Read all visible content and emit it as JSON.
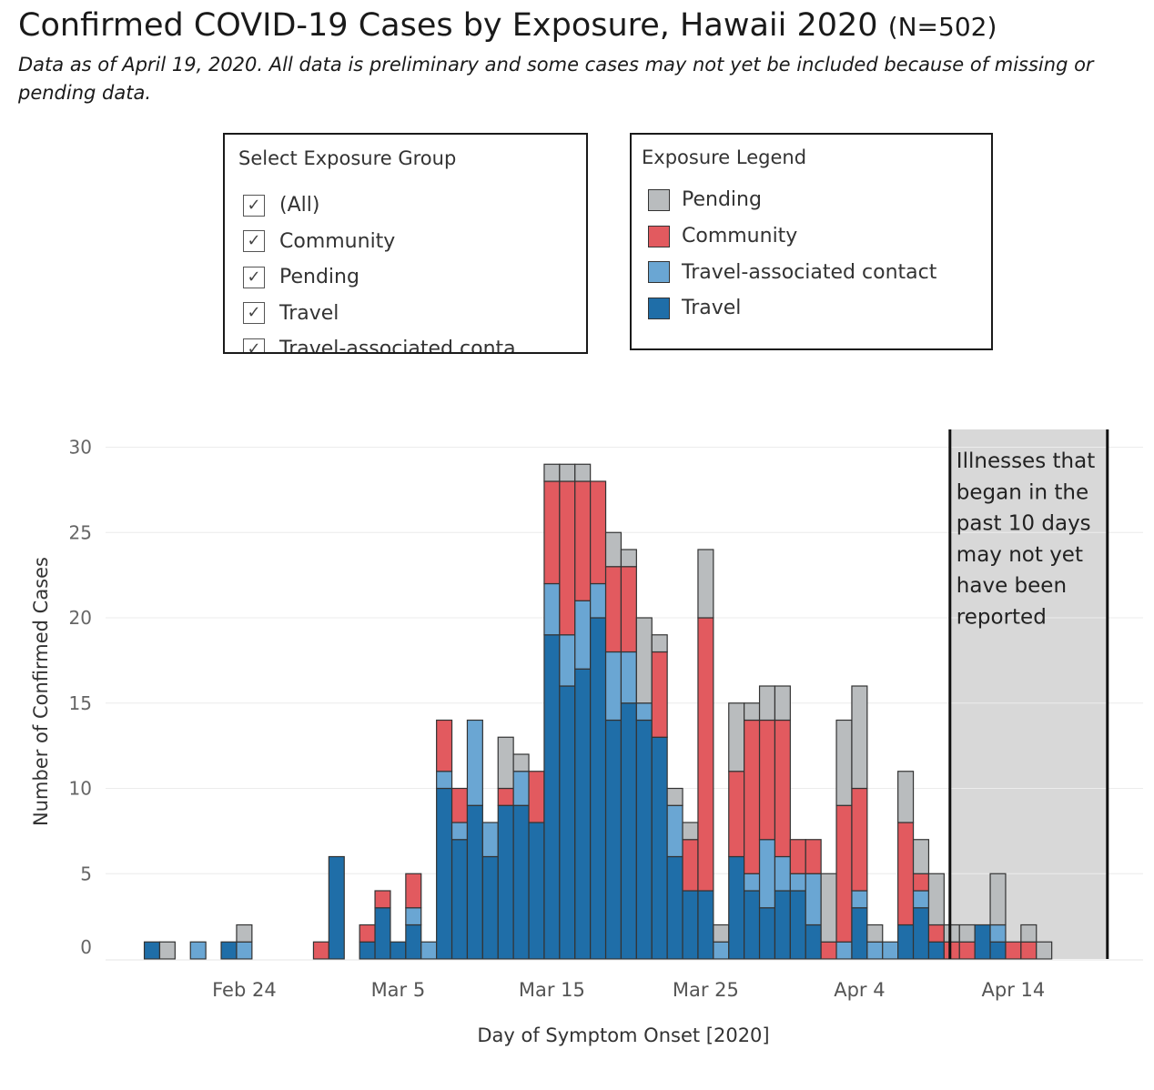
{
  "page": {
    "title": "Confirmed COVID-19 Cases by Exposure, Hawaii 2020",
    "title_n": "(N=502)",
    "subtitle": "Data as of April 19, 2020. All data is preliminary and some cases may not yet be included because of missing or pending data."
  },
  "filter": {
    "title": "Select Exposure Group",
    "items": [
      {
        "label": "(All)",
        "checked": true
      },
      {
        "label": "Community",
        "checked": true
      },
      {
        "label": "Pending",
        "checked": true
      },
      {
        "label": "Travel",
        "checked": true
      },
      {
        "label": "Travel-associated conta",
        "checked": true
      }
    ]
  },
  "legend": {
    "title": "Exposure Legend",
    "items": [
      {
        "label": "Pending",
        "color": "#b9bcbe"
      },
      {
        "label": "Community",
        "color": "#e25a5f"
      },
      {
        "label": "Travel-associated contact",
        "color": "#6aa6d3"
      },
      {
        "label": "Travel",
        "color": "#1f6ea8"
      }
    ]
  },
  "chart_data": {
    "type": "bar",
    "stacked": true,
    "xlabel": "Day of Symptom Onset [2020]",
    "ylabel": "Number of Confirmed Cases",
    "ylim": [
      0,
      31
    ],
    "yticks": [
      0,
      5,
      10,
      15,
      20,
      25,
      30
    ],
    "grid": true,
    "x_ticks": [
      {
        "label": "Feb 24",
        "date": "2020-02-24"
      },
      {
        "label": "Mar 5",
        "date": "2020-03-05"
      },
      {
        "label": "Mar 15",
        "date": "2020-03-15"
      },
      {
        "label": "Mar 25",
        "date": "2020-03-25"
      },
      {
        "label": "Apr 4",
        "date": "2020-04-04"
      },
      {
        "label": "Apr 14",
        "date": "2020-04-14"
      }
    ],
    "x": [
      "2020-02-18",
      "2020-02-19",
      "2020-02-20",
      "2020-02-21",
      "2020-02-22",
      "2020-02-23",
      "2020-02-24",
      "2020-02-25",
      "2020-02-26",
      "2020-02-27",
      "2020-02-28",
      "2020-02-29",
      "2020-03-01",
      "2020-03-02",
      "2020-03-03",
      "2020-03-04",
      "2020-03-05",
      "2020-03-06",
      "2020-03-07",
      "2020-03-08",
      "2020-03-09",
      "2020-03-10",
      "2020-03-11",
      "2020-03-12",
      "2020-03-13",
      "2020-03-14",
      "2020-03-15",
      "2020-03-16",
      "2020-03-17",
      "2020-03-18",
      "2020-03-19",
      "2020-03-20",
      "2020-03-21",
      "2020-03-22",
      "2020-03-23",
      "2020-03-24",
      "2020-03-25",
      "2020-03-26",
      "2020-03-27",
      "2020-03-28",
      "2020-03-29",
      "2020-03-30",
      "2020-03-31",
      "2020-04-01",
      "2020-04-02",
      "2020-04-03",
      "2020-04-04",
      "2020-04-05",
      "2020-04-06",
      "2020-04-07",
      "2020-04-08",
      "2020-04-09",
      "2020-04-10",
      "2020-04-11",
      "2020-04-12",
      "2020-04-13",
      "2020-04-14",
      "2020-04-15",
      "2020-04-16"
    ],
    "series": [
      {
        "name": "Travel",
        "color": "#1f6ea8",
        "values": [
          1,
          0,
          0,
          0,
          0,
          1,
          0,
          0,
          0,
          0,
          0,
          0,
          6,
          0,
          1,
          3,
          1,
          2,
          0,
          10,
          7,
          9,
          6,
          9,
          9,
          8,
          19,
          16,
          17,
          20,
          14,
          15,
          14,
          13,
          6,
          4,
          4,
          0,
          6,
          4,
          3,
          4,
          4,
          2,
          0,
          0,
          3,
          0,
          0,
          2,
          3,
          1,
          0,
          0,
          2,
          1,
          0,
          0,
          0
        ]
      },
      {
        "name": "Travel-associated contact",
        "color": "#6aa6d3",
        "values": [
          0,
          0,
          0,
          1,
          0,
          0,
          1,
          0,
          0,
          0,
          0,
          0,
          0,
          0,
          0,
          0,
          0,
          1,
          1,
          1,
          1,
          5,
          2,
          0,
          2,
          0,
          3,
          3,
          4,
          2,
          4,
          3,
          1,
          0,
          3,
          0,
          0,
          1,
          0,
          1,
          4,
          2,
          1,
          3,
          0,
          1,
          1,
          1,
          1,
          0,
          1,
          0,
          0,
          0,
          0,
          1,
          0,
          0,
          0
        ]
      },
      {
        "name": "Community",
        "color": "#e25a5f",
        "values": [
          0,
          0,
          0,
          0,
          0,
          0,
          0,
          0,
          0,
          0,
          0,
          1,
          0,
          0,
          1,
          1,
          0,
          2,
          0,
          3,
          2,
          0,
          0,
          1,
          0,
          3,
          6,
          9,
          7,
          6,
          5,
          5,
          0,
          5,
          0,
          3,
          16,
          0,
          5,
          9,
          7,
          8,
          2,
          2,
          1,
          8,
          6,
          0,
          0,
          6,
          1,
          1,
          1,
          1,
          0,
          0,
          1,
          1,
          0
        ]
      },
      {
        "name": "Pending",
        "color": "#b9bcbe",
        "values": [
          0,
          1,
          0,
          0,
          0,
          0,
          1,
          0,
          0,
          0,
          0,
          0,
          0,
          0,
          0,
          0,
          0,
          0,
          0,
          0,
          0,
          0,
          0,
          3,
          1,
          0,
          1,
          1,
          1,
          0,
          2,
          1,
          5,
          1,
          1,
          1,
          4,
          1,
          4,
          1,
          2,
          2,
          0,
          0,
          4,
          5,
          6,
          1,
          0,
          3,
          2,
          3,
          1,
          1,
          0,
          3,
          0,
          1,
          1
        ]
      }
    ],
    "annotation": {
      "text_lines": [
        "Illnesses that",
        "began in the",
        "past 10 days",
        "may not yet",
        "have been",
        "reported"
      ],
      "from_date": "2020-04-10",
      "to_date": "2020-04-20"
    }
  }
}
